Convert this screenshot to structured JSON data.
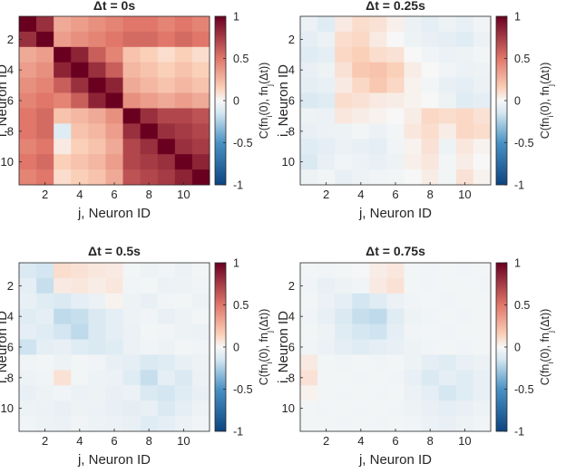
{
  "figure": {
    "colormap": {
      "neg_end": "#0d4480",
      "neg_mid": "#4a92c4",
      "neg_light": "#d3e6f1",
      "zero": "#f7f7f7",
      "pos_light": "#fbd0b8",
      "pos_mid": "#e0776a",
      "pos_end": "#6a0020"
    }
  },
  "chart_data": [
    {
      "type": "heatmap",
      "title": "Δt = 0s",
      "xlabel": "j, Neuron ID",
      "ylabel": "i, Neuron ID",
      "colorbar_label": "C(fn_i(0), fn_j(Δt))",
      "x_ticks": [
        2,
        4,
        6,
        8,
        10
      ],
      "y_ticks": [
        2,
        4,
        6,
        8,
        10
      ],
      "colorbar_ticks": [
        1,
        0.5,
        0,
        -0.5,
        -1
      ],
      "clim": [
        -1,
        1
      ],
      "size": 11,
      "values": [
        [
          1.0,
          0.8,
          0.3,
          0.35,
          0.4,
          0.45,
          0.5,
          0.5,
          0.45,
          0.5,
          0.45
        ],
        [
          0.8,
          1.0,
          0.35,
          0.4,
          0.45,
          0.5,
          0.55,
          0.55,
          0.5,
          0.55,
          0.5
        ],
        [
          0.3,
          0.35,
          1.0,
          0.85,
          0.6,
          0.45,
          0.2,
          0.15,
          0.1,
          0.15,
          0.1
        ],
        [
          0.35,
          0.4,
          0.85,
          1.0,
          0.8,
          0.6,
          0.25,
          0.2,
          0.15,
          0.2,
          0.15
        ],
        [
          0.4,
          0.45,
          0.6,
          0.8,
          1.0,
          0.85,
          0.3,
          0.25,
          0.2,
          0.25,
          0.2
        ],
        [
          0.45,
          0.5,
          0.45,
          0.6,
          0.85,
          1.0,
          0.4,
          0.35,
          0.3,
          0.35,
          0.3
        ],
        [
          0.5,
          0.55,
          0.2,
          0.25,
          0.3,
          0.4,
          1.0,
          0.8,
          0.7,
          0.7,
          0.65
        ],
        [
          0.5,
          0.55,
          -0.1,
          0.2,
          0.25,
          0.35,
          0.8,
          1.0,
          0.8,
          0.75,
          0.7
        ],
        [
          0.45,
          0.5,
          0.05,
          0.15,
          0.2,
          0.3,
          0.7,
          0.8,
          1.0,
          0.8,
          0.75
        ],
        [
          0.5,
          0.55,
          0.15,
          0.2,
          0.25,
          0.35,
          0.7,
          0.75,
          0.8,
          1.0,
          0.85
        ],
        [
          0.45,
          0.5,
          0.1,
          0.15,
          0.2,
          0.3,
          0.65,
          0.7,
          0.75,
          0.85,
          1.0
        ]
      ]
    },
    {
      "type": "heatmap",
      "title": "Δt = 0.25s",
      "xlabel": "j, Neuron ID",
      "ylabel": "i, Neuron ID",
      "colorbar_label": "C(fn_i(0), fn_j(Δt))",
      "x_ticks": [
        2,
        4,
        6,
        8,
        10
      ],
      "y_ticks": [
        2,
        4,
        6,
        8,
        10
      ],
      "colorbar_ticks": [
        1,
        0.5,
        0,
        -0.5,
        -1
      ],
      "clim": [
        -1,
        1
      ],
      "size": 11,
      "values": [
        [
          -0.05,
          -0.1,
          0.05,
          0.1,
          0.08,
          0.03,
          -0.05,
          -0.08,
          -0.04,
          -0.06,
          -0.03
        ],
        [
          -0.08,
          -0.05,
          0.1,
          0.12,
          0.05,
          0.0,
          -0.04,
          -0.06,
          -0.08,
          -0.1,
          -0.05
        ],
        [
          -0.1,
          -0.08,
          0.12,
          0.15,
          0.1,
          0.08,
          0.0,
          -0.03,
          -0.05,
          -0.04,
          -0.02
        ],
        [
          -0.06,
          -0.04,
          0.08,
          0.18,
          0.2,
          0.15,
          0.04,
          0.0,
          -0.03,
          -0.05,
          -0.04
        ],
        [
          -0.08,
          -0.06,
          0.05,
          0.12,
          0.18,
          0.12,
          0.02,
          -0.02,
          -0.06,
          -0.08,
          -0.05
        ],
        [
          -0.12,
          -0.1,
          0.1,
          0.08,
          0.05,
          0.04,
          0.02,
          0.0,
          -0.04,
          -0.1,
          -0.08
        ],
        [
          -0.04,
          -0.05,
          0.06,
          0.04,
          0.02,
          0.0,
          0.04,
          0.12,
          0.1,
          0.12,
          0.08
        ],
        [
          -0.06,
          -0.05,
          -0.04,
          -0.02,
          -0.05,
          -0.02,
          0.06,
          0.1,
          0.04,
          0.12,
          0.1
        ],
        [
          -0.1,
          -0.08,
          -0.05,
          -0.06,
          -0.08,
          -0.03,
          0.02,
          0.08,
          -0.04,
          0.06,
          0.02
        ],
        [
          -0.12,
          -0.06,
          -0.03,
          -0.05,
          -0.06,
          -0.04,
          0.03,
          0.06,
          -0.02,
          0.04,
          0.0
        ],
        [
          -0.04,
          -0.02,
          -0.06,
          -0.04,
          -0.03,
          -0.02,
          0.0,
          0.04,
          -0.02,
          0.08,
          0.02
        ]
      ]
    },
    {
      "type": "heatmap",
      "title": "Δt = 0.5s",
      "xlabel": "j, Neuron ID",
      "ylabel": "i, Neuron ID",
      "colorbar_label": "C(fn_i(0), fn_j(Δt))",
      "x_ticks": [
        2,
        4,
        6,
        8,
        10
      ],
      "y_ticks": [
        2,
        4,
        6,
        8,
        10
      ],
      "colorbar_ticks": [
        1,
        0.5,
        0,
        -0.5,
        -1
      ],
      "clim": [
        -1,
        1
      ],
      "size": 11,
      "values": [
        [
          -0.12,
          -0.15,
          0.1,
          0.08,
          0.06,
          0.05,
          -0.02,
          -0.04,
          -0.03,
          -0.05,
          -0.02
        ],
        [
          -0.08,
          -0.18,
          0.05,
          0.06,
          0.04,
          0.06,
          -0.03,
          -0.02,
          -0.05,
          -0.04,
          -0.03
        ],
        [
          -0.06,
          -0.1,
          -0.12,
          -0.08,
          -0.05,
          0.02,
          -0.04,
          -0.06,
          -0.03,
          -0.02,
          -0.04
        ],
        [
          -0.1,
          -0.08,
          -0.2,
          -0.18,
          -0.12,
          -0.08,
          -0.04,
          -0.03,
          -0.06,
          -0.04,
          -0.02
        ],
        [
          -0.08,
          -0.1,
          -0.15,
          -0.2,
          -0.12,
          -0.08,
          -0.05,
          -0.02,
          -0.03,
          -0.04,
          -0.05
        ],
        [
          -0.16,
          -0.08,
          -0.06,
          -0.1,
          -0.12,
          -0.1,
          -0.05,
          -0.03,
          -0.04,
          -0.02,
          -0.03
        ],
        [
          -0.03,
          -0.02,
          -0.04,
          -0.02,
          -0.03,
          -0.06,
          -0.08,
          -0.12,
          -0.1,
          -0.06,
          -0.04
        ],
        [
          -0.04,
          -0.03,
          0.08,
          -0.02,
          -0.04,
          -0.05,
          -0.1,
          -0.18,
          -0.08,
          -0.12,
          -0.05
        ],
        [
          -0.06,
          -0.04,
          -0.03,
          -0.05,
          -0.04,
          -0.06,
          -0.05,
          -0.12,
          -0.15,
          -0.1,
          -0.06
        ],
        [
          -0.04,
          -0.05,
          -0.06,
          -0.04,
          -0.05,
          -0.06,
          -0.08,
          -0.06,
          -0.12,
          -0.08,
          -0.04
        ],
        [
          -0.03,
          -0.04,
          -0.05,
          -0.03,
          -0.04,
          -0.05,
          -0.06,
          -0.1,
          -0.08,
          -0.05,
          -0.03
        ]
      ]
    },
    {
      "type": "heatmap",
      "title": "Δt = 0.75s",
      "xlabel": "j, Neuron ID",
      "ylabel": "i, Neuron ID",
      "colorbar_label": "C(fn_i(0), fn_j(Δt))",
      "x_ticks": [
        2,
        4,
        6,
        8,
        10
      ],
      "y_ticks": [
        2,
        4,
        6,
        8,
        10
      ],
      "colorbar_ticks": [
        1,
        0.5,
        0,
        -0.5,
        -1
      ],
      "clim": [
        -1,
        1
      ],
      "size": 11,
      "values": [
        [
          -0.02,
          -0.03,
          -0.02,
          -0.01,
          0.04,
          0.06,
          -0.02,
          -0.03,
          -0.02,
          -0.03,
          -0.02
        ],
        [
          -0.03,
          -0.06,
          -0.04,
          -0.03,
          0.05,
          0.08,
          -0.02,
          -0.03,
          -0.02,
          -0.02,
          -0.03
        ],
        [
          -0.02,
          -0.05,
          -0.08,
          -0.15,
          -0.1,
          -0.05,
          -0.03,
          -0.02,
          -0.03,
          -0.02,
          -0.02
        ],
        [
          -0.03,
          -0.06,
          -0.12,
          -0.18,
          -0.2,
          -0.1,
          -0.04,
          -0.03,
          -0.02,
          -0.03,
          -0.02
        ],
        [
          -0.02,
          -0.04,
          -0.1,
          -0.14,
          -0.16,
          -0.08,
          -0.03,
          -0.02,
          -0.03,
          -0.02,
          -0.02
        ],
        [
          -0.03,
          -0.05,
          -0.08,
          -0.1,
          -0.08,
          -0.06,
          -0.04,
          -0.03,
          -0.02,
          -0.03,
          -0.02
        ],
        [
          0.05,
          -0.02,
          -0.03,
          -0.02,
          -0.03,
          -0.02,
          -0.04,
          -0.08,
          -0.1,
          -0.06,
          -0.05
        ],
        [
          0.08,
          -0.02,
          -0.02,
          -0.03,
          -0.02,
          -0.03,
          -0.06,
          -0.12,
          -0.08,
          -0.1,
          -0.06
        ],
        [
          0.02,
          -0.02,
          -0.03,
          -0.02,
          -0.03,
          -0.02,
          -0.05,
          -0.08,
          -0.14,
          -0.1,
          -0.06
        ],
        [
          -0.02,
          -0.03,
          -0.02,
          -0.03,
          -0.02,
          -0.03,
          -0.04,
          -0.06,
          -0.08,
          -0.06,
          -0.04
        ],
        [
          -0.02,
          -0.02,
          -0.03,
          -0.02,
          -0.03,
          -0.02,
          -0.03,
          -0.05,
          -0.06,
          -0.04,
          -0.03
        ]
      ]
    }
  ]
}
